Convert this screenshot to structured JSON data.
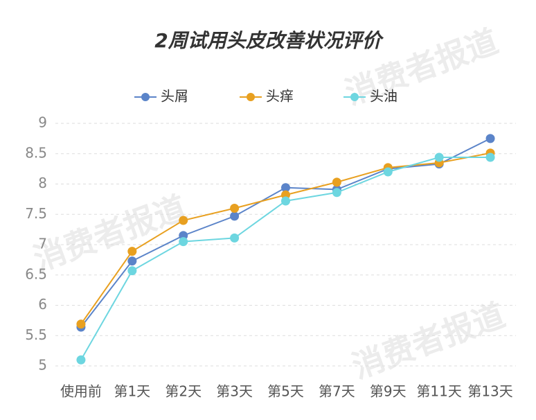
{
  "chart_data": {
    "type": "line",
    "title": "2周试用头皮改善状况评价",
    "watermark": "消费者报道",
    "categories": [
      "使用前",
      "第1天",
      "第2天",
      "第3天",
      "第5天",
      "第7天",
      "第9天",
      "第11天",
      "第13天"
    ],
    "series": [
      {
        "name": "头屑",
        "color": "#5b84c9",
        "values": [
          5.64,
          6.73,
          7.15,
          7.47,
          7.94,
          7.91,
          8.25,
          8.33,
          8.75
        ]
      },
      {
        "name": "头痒",
        "color": "#e8a020",
        "values": [
          5.69,
          6.89,
          7.4,
          7.6,
          7.82,
          8.03,
          8.27,
          8.35,
          8.51
        ]
      },
      {
        "name": "头油",
        "color": "#6dd6e0",
        "values": [
          5.1,
          6.57,
          7.05,
          7.11,
          7.72,
          7.86,
          8.2,
          8.44,
          8.44
        ]
      }
    ],
    "ylim": [
      5,
      9
    ],
    "yticks": [
      5,
      5.5,
      6,
      6.5,
      7,
      7.5,
      8,
      8.5,
      9
    ],
    "grid": true,
    "legend": "top"
  }
}
